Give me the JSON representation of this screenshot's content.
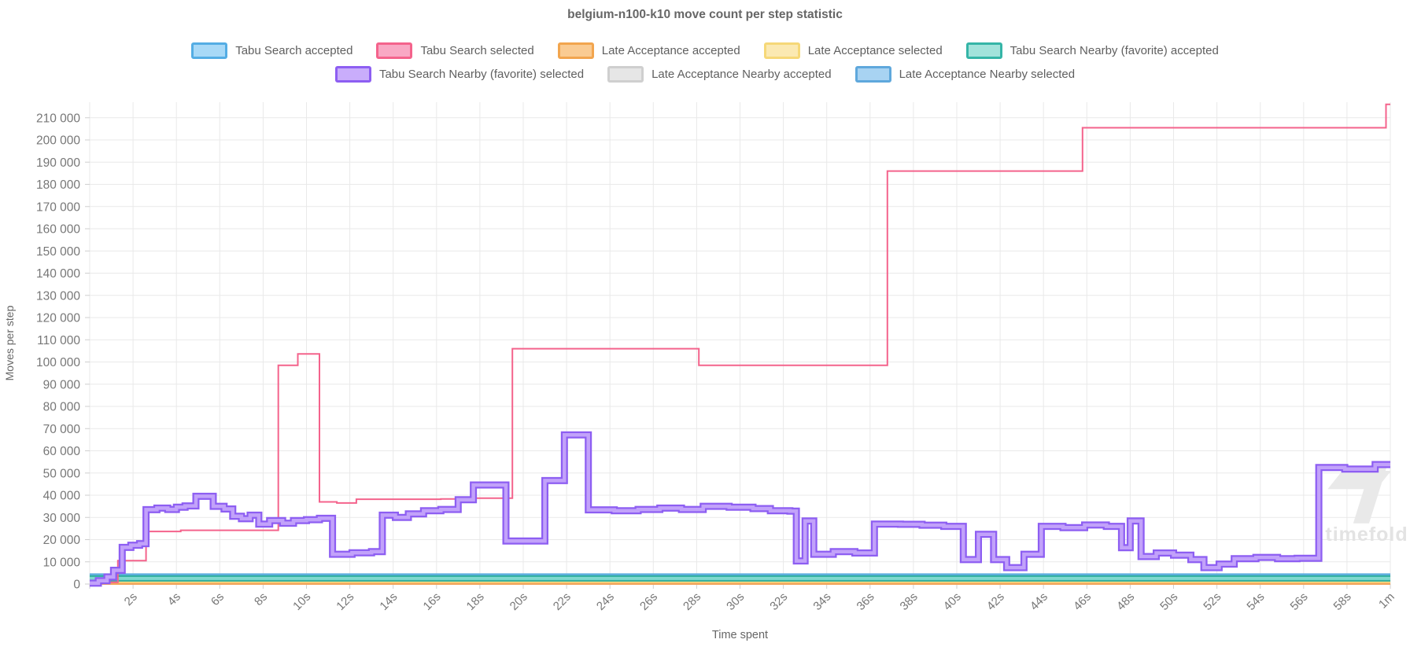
{
  "title": "belgium-n100-k10 move count per step statistic",
  "watermark": {
    "text": "timefold"
  },
  "legend": {
    "rows": [
      [
        {
          "label": "Tabu Search accepted",
          "fill": "#A8D9F7",
          "border": "#54ADE4"
        },
        {
          "label": "Tabu Search selected",
          "fill": "#F9A8C4",
          "border": "#F4638C"
        },
        {
          "label": "Late Acceptance accepted",
          "fill": "#FACB92",
          "border": "#F2A54E"
        },
        {
          "label": "Late Acceptance selected",
          "fill": "#FBE9B2",
          "border": "#F6D878"
        },
        {
          "label": "Tabu Search Nearby (favorite) accepted",
          "fill": "#A2E3DB",
          "border": "#35B5A7"
        }
      ],
      [
        {
          "label": "Tabu Search Nearby (favorite) selected",
          "fill": "#C9ADFB",
          "border": "#8D5EF2"
        },
        {
          "label": "Late Acceptance Nearby accepted",
          "fill": "#E6E6E6",
          "border": "#CFCFCF"
        },
        {
          "label": "Late Acceptance Nearby selected",
          "fill": "#A8D3F2",
          "border": "#5FA8DC"
        }
      ]
    ]
  },
  "chart_data": {
    "type": "line",
    "subtype": "step-after",
    "title": "belgium-n100-k10 move count per step statistic",
    "xlabel": "Time spent",
    "ylabel": "Moves per step",
    "xlim": [
      0,
      60
    ],
    "ylim": [
      0,
      217000
    ],
    "grid": true,
    "legend_position": "top",
    "x_ticks": [
      {
        "t": 0,
        "label": ""
      },
      {
        "t": 2,
        "label": "2s"
      },
      {
        "t": 4,
        "label": "4s"
      },
      {
        "t": 6,
        "label": "6s"
      },
      {
        "t": 8,
        "label": "8s"
      },
      {
        "t": 10,
        "label": "10s"
      },
      {
        "t": 12,
        "label": "12s"
      },
      {
        "t": 14,
        "label": "14s"
      },
      {
        "t": 16,
        "label": "16s"
      },
      {
        "t": 18,
        "label": "18s"
      },
      {
        "t": 20,
        "label": "20s"
      },
      {
        "t": 22,
        "label": "22s"
      },
      {
        "t": 24,
        "label": "24s"
      },
      {
        "t": 26,
        "label": "26s"
      },
      {
        "t": 28,
        "label": "28s"
      },
      {
        "t": 30,
        "label": "30s"
      },
      {
        "t": 32,
        "label": "32s"
      },
      {
        "t": 34,
        "label": "34s"
      },
      {
        "t": 36,
        "label": "36s"
      },
      {
        "t": 38,
        "label": "38s"
      },
      {
        "t": 40,
        "label": "40s"
      },
      {
        "t": 42,
        "label": "42s"
      },
      {
        "t": 44,
        "label": "44s"
      },
      {
        "t": 46,
        "label": "46s"
      },
      {
        "t": 48,
        "label": "48s"
      },
      {
        "t": 50,
        "label": "50s"
      },
      {
        "t": 52,
        "label": "52s"
      },
      {
        "t": 54,
        "label": "54s"
      },
      {
        "t": 56,
        "label": "56s"
      },
      {
        "t": 58,
        "label": "58s"
      },
      {
        "t": 60,
        "label": "1m"
      }
    ],
    "y_ticks": [
      {
        "v": 0,
        "label": "0"
      },
      {
        "v": 10000,
        "label": "10 000"
      },
      {
        "v": 20000,
        "label": "20 000"
      },
      {
        "v": 30000,
        "label": "30 000"
      },
      {
        "v": 40000,
        "label": "40 000"
      },
      {
        "v": 50000,
        "label": "50 000"
      },
      {
        "v": 60000,
        "label": "60 000"
      },
      {
        "v": 70000,
        "label": "70 000"
      },
      {
        "v": 80000,
        "label": "80 000"
      },
      {
        "v": 90000,
        "label": "90 000"
      },
      {
        "v": 100000,
        "label": "100 000"
      },
      {
        "v": 110000,
        "label": "110 000"
      },
      {
        "v": 120000,
        "label": "120 000"
      },
      {
        "v": 130000,
        "label": "130 000"
      },
      {
        "v": 140000,
        "label": "140 000"
      },
      {
        "v": 150000,
        "label": "150 000"
      },
      {
        "v": 160000,
        "label": "160 000"
      },
      {
        "v": 170000,
        "label": "170 000"
      },
      {
        "v": 180000,
        "label": "180 000"
      },
      {
        "v": 190000,
        "label": "190 000"
      },
      {
        "v": 200000,
        "label": "200 000"
      },
      {
        "v": 210000,
        "label": "210 000"
      }
    ],
    "series": [
      {
        "name": "Late Acceptance Nearby accepted",
        "color": "#DCDCDC",
        "width": 4,
        "points": [
          [
            0,
            2300
          ]
        ]
      },
      {
        "name": "Tabu Search accepted",
        "color": "#73BFEB",
        "width": 3,
        "points": [
          [
            0,
            2600
          ]
        ]
      },
      {
        "name": "Late Acceptance selected",
        "color": "#F7DC83",
        "width": 2.5,
        "points": [
          [
            0,
            800
          ]
        ]
      },
      {
        "name": "Late Acceptance accepted",
        "color": "#F2A55C",
        "width": 2.5,
        "points": [
          [
            0,
            100
          ]
        ]
      },
      {
        "name": "Late Acceptance Nearby selected",
        "color": "#5FAEDF",
        "width": 3,
        "points": [
          [
            0,
            4300
          ]
        ]
      },
      {
        "name": "Tabu Search Nearby (favorite) accepted",
        "color": "#7FD9CE",
        "width": 4,
        "outer_color": "#2FAE9F",
        "outer_width": 8,
        "points": [
          [
            0,
            2500
          ]
        ]
      },
      {
        "name": "Tabu Search selected",
        "color": "#F4638C",
        "width": 2,
        "points": [
          [
            0,
            800
          ],
          [
            1.3,
            10500
          ],
          [
            2.6,
            23700
          ],
          [
            4.2,
            24200
          ],
          [
            8.7,
            98500
          ],
          [
            9.6,
            103600
          ],
          [
            10.6,
            37000
          ],
          [
            11.4,
            36500
          ],
          [
            12.3,
            38200
          ],
          [
            16.2,
            38300
          ],
          [
            17.6,
            38700
          ],
          [
            19.5,
            106000
          ],
          [
            28.1,
            98500
          ],
          [
            36.8,
            186000
          ],
          [
            45.8,
            205500
          ],
          [
            59.8,
            216000
          ]
        ]
      },
      {
        "name": "Tabu Search Nearby (favorite) selected",
        "color": "#C2A2FA",
        "width": 4.5,
        "outer_color": "#8D5EF2",
        "outer_width": 9,
        "points": [
          [
            0,
            400
          ],
          [
            0.4,
            1500
          ],
          [
            0.8,
            3200
          ],
          [
            1.1,
            6200
          ],
          [
            1.5,
            16500
          ],
          [
            1.9,
            17500
          ],
          [
            2.3,
            18200
          ],
          [
            2.6,
            33500
          ],
          [
            3.1,
            34200
          ],
          [
            3.6,
            33600
          ],
          [
            4.0,
            34600
          ],
          [
            4.4,
            35200
          ],
          [
            4.9,
            39500
          ],
          [
            5.7,
            35000
          ],
          [
            6.2,
            33800
          ],
          [
            6.6,
            30500
          ],
          [
            7.0,
            29400
          ],
          [
            7.4,
            31000
          ],
          [
            7.8,
            27000
          ],
          [
            8.3,
            28600
          ],
          [
            8.9,
            27400
          ],
          [
            9.4,
            28600
          ],
          [
            10.0,
            29000
          ],
          [
            10.6,
            29600
          ],
          [
            11.2,
            13400
          ],
          [
            12.1,
            14100
          ],
          [
            13.0,
            14600
          ],
          [
            13.5,
            31000
          ],
          [
            14.1,
            30000
          ],
          [
            14.7,
            31600
          ],
          [
            15.4,
            33000
          ],
          [
            16.2,
            33600
          ],
          [
            17.0,
            38000
          ],
          [
            17.7,
            44600
          ],
          [
            19.2,
            19400
          ],
          [
            21.0,
            46600
          ],
          [
            21.9,
            67200
          ],
          [
            23.0,
            33400
          ],
          [
            24.2,
            33000
          ],
          [
            25.3,
            33600
          ],
          [
            26.3,
            34200
          ],
          [
            27.3,
            33600
          ],
          [
            28.3,
            35000
          ],
          [
            29.5,
            34600
          ],
          [
            30.6,
            34000
          ],
          [
            31.4,
            33000
          ],
          [
            32.3,
            32800
          ],
          [
            32.6,
            10400
          ],
          [
            33.0,
            28400
          ],
          [
            33.4,
            13400
          ],
          [
            34.3,
            14600
          ],
          [
            35.3,
            14000
          ],
          [
            36.2,
            27000
          ],
          [
            37.4,
            26900
          ],
          [
            38.4,
            26500
          ],
          [
            39.4,
            26000
          ],
          [
            40.3,
            11000
          ],
          [
            41.0,
            22400
          ],
          [
            41.7,
            11000
          ],
          [
            42.3,
            7400
          ],
          [
            43.1,
            13400
          ],
          [
            43.9,
            26000
          ],
          [
            44.9,
            25400
          ],
          [
            45.9,
            26600
          ],
          [
            46.9,
            26000
          ],
          [
            47.6,
            16400
          ],
          [
            48.0,
            28400
          ],
          [
            48.5,
            12400
          ],
          [
            49.2,
            14000
          ],
          [
            50.0,
            13000
          ],
          [
            50.8,
            11000
          ],
          [
            51.4,
            7400
          ],
          [
            52.1,
            9000
          ],
          [
            52.8,
            11400
          ],
          [
            53.8,
            12000
          ],
          [
            54.8,
            11400
          ],
          [
            55.7,
            11600
          ],
          [
            56.7,
            52500
          ],
          [
            57.9,
            51800
          ],
          [
            59.3,
            53800
          ]
        ]
      }
    ]
  }
}
